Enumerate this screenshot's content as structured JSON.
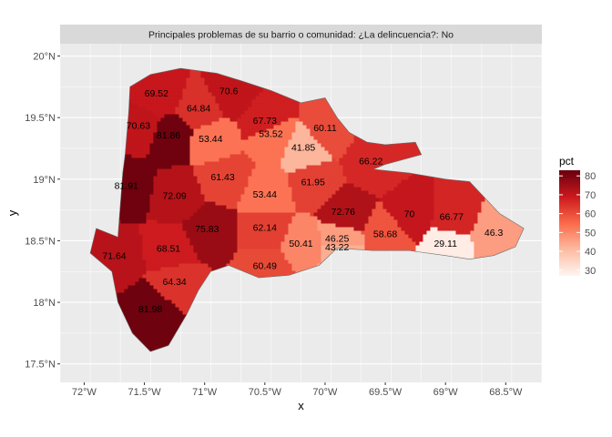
{
  "chart_data": {
    "type": "choropleth-map",
    "title": "",
    "facet_label": "Principales problemas de su barrio o comunidad: ¿La delincuencia?: No",
    "xlabel": "x",
    "ylabel": "y",
    "x_ticks": [
      "72°W",
      "71.5°W",
      "71°W",
      "70.5°W",
      "70°W",
      "69.5°W",
      "69°W",
      "68.5°W"
    ],
    "y_ticks": [
      "17.5°N",
      "18°N",
      "18.5°N",
      "19°N",
      "19.5°N",
      "20°N"
    ],
    "xlim": [
      -72.2,
      -68.2
    ],
    "ylim": [
      17.35,
      20.1
    ],
    "legend": {
      "title": "pct",
      "position": "right",
      "ticks": [
        30,
        40,
        50,
        60,
        70,
        80
      ],
      "min": 27,
      "max": 83,
      "low_color": "#fff5f0",
      "high_color": "#67000d"
    },
    "regions": [
      {
        "label": "69.52",
        "value": 69.52,
        "lon": -71.4,
        "lat": 19.7
      },
      {
        "label": "70.6",
        "value": 70.6,
        "lon": -70.8,
        "lat": 19.72
      },
      {
        "label": "64.84",
        "value": 64.84,
        "lon": -71.05,
        "lat": 19.58
      },
      {
        "label": "70.63",
        "value": 70.63,
        "lon": -71.55,
        "lat": 19.44
      },
      {
        "label": "81.86",
        "value": 81.86,
        "lon": -71.3,
        "lat": 19.36
      },
      {
        "label": "67.73",
        "value": 67.73,
        "lon": -70.5,
        "lat": 19.48
      },
      {
        "label": "53.52",
        "value": 53.52,
        "lon": -70.45,
        "lat": 19.37
      },
      {
        "label": "60.11",
        "value": 60.11,
        "lon": -70.0,
        "lat": 19.42
      },
      {
        "label": "53.44",
        "value": 53.44,
        "lon": -70.95,
        "lat": 19.33
      },
      {
        "label": "41.85",
        "value": 41.85,
        "lon": -70.18,
        "lat": 19.26
      },
      {
        "label": "66.22",
        "value": 66.22,
        "lon": -69.62,
        "lat": 19.15
      },
      {
        "label": "61.43",
        "value": 61.43,
        "lon": -70.85,
        "lat": 19.02
      },
      {
        "label": "81.91",
        "value": 81.91,
        "lon": -71.65,
        "lat": 18.95
      },
      {
        "label": "72.09",
        "value": 72.09,
        "lon": -71.25,
        "lat": 18.87
      },
      {
        "label": "61.95",
        "value": 61.95,
        "lon": -70.1,
        "lat": 18.98
      },
      {
        "label": "53.44",
        "value": 53.44,
        "lon": -70.5,
        "lat": 18.88
      },
      {
        "label": "72.76",
        "value": 72.76,
        "lon": -69.85,
        "lat": 18.74
      },
      {
        "label": "70",
        "value": 70,
        "lon": -69.3,
        "lat": 18.72
      },
      {
        "label": "66.77",
        "value": 66.77,
        "lon": -68.95,
        "lat": 18.7
      },
      {
        "label": "75.83",
        "value": 75.83,
        "lon": -70.98,
        "lat": 18.6
      },
      {
        "label": "62.14",
        "value": 62.14,
        "lon": -70.5,
        "lat": 18.61
      },
      {
        "label": "46.25",
        "value": 46.25,
        "lon": -69.9,
        "lat": 18.52
      },
      {
        "label": "58.68",
        "value": 58.68,
        "lon": -69.5,
        "lat": 18.56
      },
      {
        "label": "46.3",
        "value": 46.3,
        "lon": -68.6,
        "lat": 18.57
      },
      {
        "label": "68.51",
        "value": 68.51,
        "lon": -71.3,
        "lat": 18.44
      },
      {
        "label": "71.64",
        "value": 71.64,
        "lon": -71.75,
        "lat": 18.38
      },
      {
        "label": "50.41",
        "value": 50.41,
        "lon": -70.2,
        "lat": 18.48
      },
      {
        "label": "43.22",
        "value": 43.22,
        "lon": -69.9,
        "lat": 18.45
      },
      {
        "label": "29.11",
        "value": 29.11,
        "lon": -69.0,
        "lat": 18.48
      },
      {
        "label": "60.49",
        "value": 60.49,
        "lon": -70.5,
        "lat": 18.3
      },
      {
        "label": "64.34",
        "value": 64.34,
        "lon": -71.25,
        "lat": 18.17
      },
      {
        "label": "81.98",
        "value": 81.98,
        "lon": -71.45,
        "lat": 17.95
      }
    ]
  }
}
